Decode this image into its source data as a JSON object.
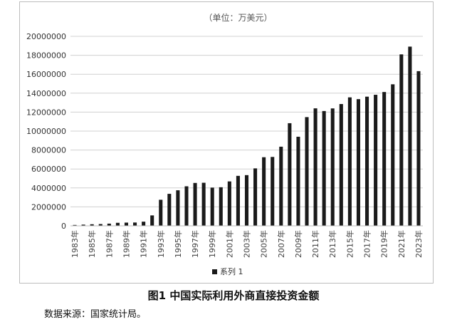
{
  "caption": "图1  中国实际利用外商直接投资金额",
  "source": "数据来源：国家统计局。",
  "chart_data": {
    "type": "bar",
    "unit_note": "（单位：万美元）",
    "categories": [
      "1983年",
      "1984年",
      "1985年",
      "1986年",
      "1987年",
      "1988年",
      "1989年",
      "1990年",
      "1991年",
      "1992年",
      "1993年",
      "1994年",
      "1995年",
      "1996年",
      "1997年",
      "1998年",
      "1999年",
      "2000年",
      "2001年",
      "2002年",
      "2003年",
      "2004年",
      "2005年",
      "2006年",
      "2007年",
      "2008年",
      "2009年",
      "2010年",
      "2011年",
      "2012年",
      "2013年",
      "2014年",
      "2015年",
      "2016年",
      "2017年",
      "2018年",
      "2019年",
      "2020年",
      "2021年",
      "2022年",
      "2023年"
    ],
    "x_tick_labels": [
      "1983年",
      "1985年",
      "1987年",
      "1989年",
      "1991年",
      "1993年",
      "1995年",
      "1997年",
      "1999年",
      "2001年",
      "2003年",
      "2005年",
      "2007年",
      "2009年",
      "2011年",
      "2013年",
      "2015年",
      "2017年",
      "2019年",
      "2021年",
      "2023年"
    ],
    "series": [
      {
        "name": "系列 1",
        "color": "#1a1a1a",
        "values": [
          92000,
          126000,
          166000,
          187000,
          231000,
          319000,
          339000,
          349000,
          437000,
          1101000,
          2752000,
          3377000,
          3752000,
          4173000,
          4526000,
          4546000,
          4032000,
          4072000,
          4688000,
          5274000,
          5351000,
          6063000,
          7241000,
          7271000,
          8352000,
          10831000,
          9403000,
          11473000,
          12399000,
          12117000,
          12391000,
          12855000,
          13558000,
          13370000,
          13632000,
          13831000,
          14123000,
          14937000,
          18096000,
          18913000,
          16325000
        ]
      }
    ],
    "y_tick_labels": [
      "0",
      "2000000",
      "4000000",
      "6000000",
      "8000000",
      "10000000",
      "12000000",
      "14000000",
      "16000000",
      "18000000",
      "20000000"
    ],
    "ylim": [
      0,
      20000000
    ],
    "grid": true,
    "legend_position": "bottom"
  }
}
